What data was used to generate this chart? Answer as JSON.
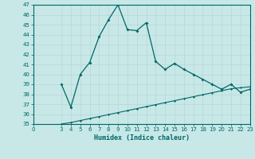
{
  "title": "",
  "xlabel": "Humidex (Indice chaleur)",
  "bg_color": "#c8e8e8",
  "line_color": "#006666",
  "grid_color": "#b8d8d8",
  "ylim": [
    35,
    47
  ],
  "xlim": [
    0,
    23
  ],
  "yticks": [
    35,
    36,
    37,
    38,
    39,
    40,
    41,
    42,
    43,
    44,
    45,
    46,
    47
  ],
  "xticks": [
    0,
    3,
    4,
    5,
    6,
    7,
    8,
    9,
    10,
    11,
    12,
    13,
    14,
    15,
    16,
    17,
    18,
    19,
    20,
    21,
    22,
    23
  ],
  "series1_x": [
    3,
    4,
    5,
    6,
    7,
    8,
    9,
    10,
    11,
    12,
    13,
    14,
    15,
    16,
    17,
    18,
    19,
    20,
    21,
    22,
    23
  ],
  "series1_y": [
    39.0,
    36.7,
    40.0,
    41.2,
    43.8,
    45.5,
    47.0,
    44.5,
    44.4,
    45.2,
    41.3,
    40.5,
    41.1,
    40.5,
    40.0,
    39.5,
    39.0,
    38.5,
    39.0,
    38.2,
    38.5
  ],
  "series2_x": [
    3,
    4,
    5,
    6,
    7,
    8,
    9,
    10,
    11,
    12,
    13,
    14,
    15,
    16,
    17,
    18,
    19,
    20,
    21,
    22,
    23
  ],
  "series2_y": [
    35.0,
    35.15,
    35.35,
    35.55,
    35.75,
    35.95,
    36.15,
    36.35,
    36.55,
    36.75,
    36.95,
    37.15,
    37.35,
    37.55,
    37.75,
    37.95,
    38.15,
    38.35,
    38.55,
    38.65,
    38.75
  ]
}
